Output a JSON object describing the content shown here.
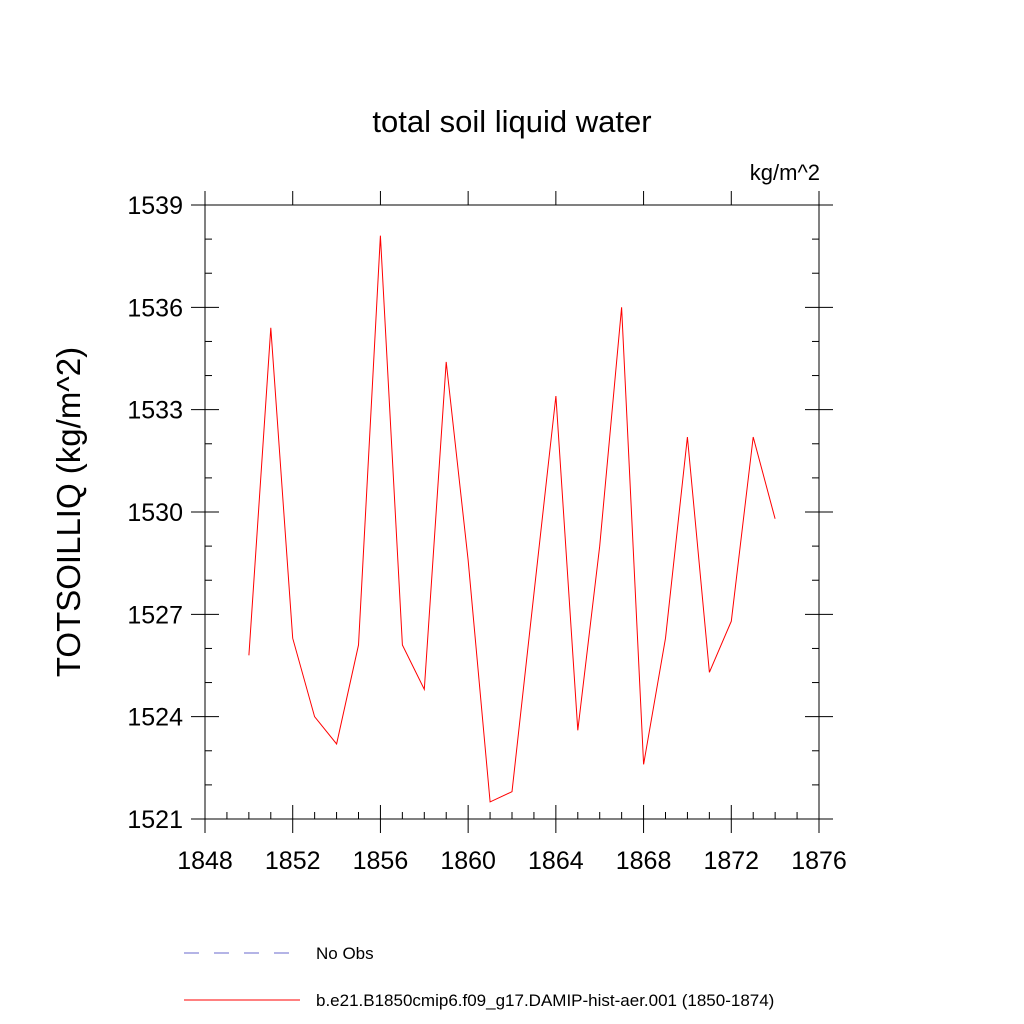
{
  "chart_data": {
    "type": "line",
    "title": "total soil liquid water",
    "units_label": "kg/m^2",
    "ylabel": "TOTSOILLIQ  (kg/m^2)",
    "xlabel": "",
    "xlim": [
      1848,
      1876
    ],
    "ylim": [
      1521,
      1539
    ],
    "x_ticks": [
      1848,
      1852,
      1856,
      1860,
      1864,
      1868,
      1872,
      1876
    ],
    "x_tick_labels": [
      "1848",
      "1852",
      "1856",
      "1860",
      "1864",
      "1868",
      "1872",
      "1876"
    ],
    "y_ticks": [
      1521,
      1524,
      1527,
      1530,
      1533,
      1536,
      1539
    ],
    "y_tick_labels": [
      "1521",
      "1524",
      "1527",
      "1530",
      "1533",
      "1536",
      "1539"
    ],
    "grid": false,
    "legend_placement": "bottom",
    "series": [
      {
        "name": "b.e21.B1850cmip6.f09_g17.DAMIP-hist-aer.001 (1850-1874)",
        "color": "#ff0000",
        "style": "solid",
        "x": [
          1850,
          1851,
          1852,
          1853,
          1854,
          1855,
          1856,
          1857,
          1858,
          1859,
          1860,
          1861,
          1862,
          1863,
          1864,
          1865,
          1866,
          1867,
          1868,
          1869,
          1870,
          1871,
          1872,
          1873,
          1874
        ],
        "values": [
          1525.8,
          1535.4,
          1526.3,
          1524.0,
          1523.2,
          1526.1,
          1538.1,
          1526.1,
          1524.8,
          1534.4,
          1528.6,
          1521.5,
          1521.8,
          1527.6,
          1533.4,
          1523.6,
          1529.0,
          1536.0,
          1522.6,
          1526.3,
          1532.2,
          1525.3,
          1526.8,
          1532.2,
          1529.8
        ]
      }
    ],
    "legend": [
      {
        "label": "No Obs",
        "color": "#6a6acd",
        "style": "dashed"
      },
      {
        "label": "b.e21.B1850cmip6.f09_g17.DAMIP-hist-aer.001 (1850-1874)",
        "color": "#ff0000",
        "style": "solid"
      }
    ]
  }
}
